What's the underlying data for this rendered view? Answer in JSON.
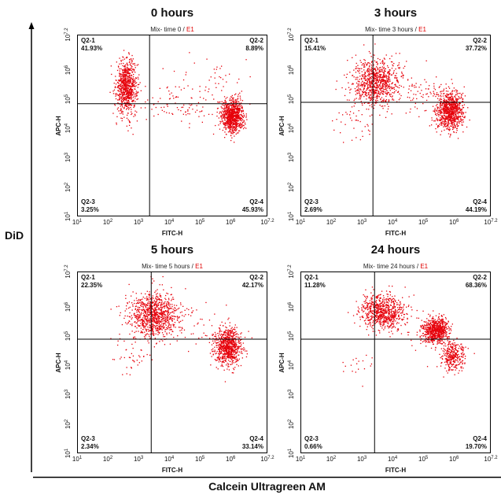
{
  "outer_axes": {
    "y_label": "DiD",
    "x_label": "Calcein Ultragreen AM"
  },
  "chart_data": [
    {
      "type": "scatter",
      "title": "0 hours",
      "subtitle": "Mix- time 0 /",
      "gate_name": "E1",
      "gate_name_color": "#e00000",
      "xlabel": "FITC-H",
      "ylabel": "APC-H",
      "xscale": "log",
      "yscale": "log",
      "xlim": [
        10,
        15848932
      ],
      "ylim": [
        10,
        15848932
      ],
      "grid": false,
      "point_color": "#e6000a",
      "x_ticks": [
        {
          "value": 10,
          "base": "10",
          "exp": "1"
        },
        {
          "value": 100,
          "base": "10",
          "exp": "2"
        },
        {
          "value": 1000,
          "base": "10",
          "exp": "3"
        },
        {
          "value": 10000,
          "base": "10",
          "exp": "4"
        },
        {
          "value": 100000,
          "base": "10",
          "exp": "5"
        },
        {
          "value": 1000000,
          "base": "10",
          "exp": "6"
        },
        {
          "value": 15848932,
          "base": "10",
          "exp": "7.2"
        }
      ],
      "y_ticks": [
        {
          "value": 10,
          "base": "10",
          "exp": "1"
        },
        {
          "value": 100,
          "base": "10",
          "exp": "2"
        },
        {
          "value": 1000,
          "base": "10",
          "exp": "3"
        },
        {
          "value": 10000,
          "base": "10",
          "exp": "4"
        },
        {
          "value": 100000,
          "base": "10",
          "exp": "5"
        },
        {
          "value": 1000000,
          "base": "10",
          "exp": "6"
        },
        {
          "value": 15848932,
          "base": "10",
          "exp": "7.2"
        }
      ],
      "gate": {
        "x": 2300,
        "y": 70000
      },
      "quadrants": {
        "upper_left": {
          "name": "Q2-1",
          "percent": "41.93%"
        },
        "upper_right": {
          "name": "Q2-2",
          "percent": "8.89%"
        },
        "lower_left": {
          "name": "Q2-3",
          "percent": "3.25%"
        },
        "lower_right": {
          "name": "Q2-4",
          "percent": "45.93%"
        }
      },
      "populations": [
        {
          "x": 400,
          "y": 280000,
          "sd_log10_x": 0.17,
          "sd_log10_y": 0.45,
          "share_percent": 44
        },
        {
          "x": 1120000,
          "y": 28000,
          "sd_log10_x": 0.18,
          "sd_log10_y": 0.28,
          "share_percent": 48
        },
        {
          "x": 20000,
          "y": 79000,
          "sd_log10_x": 0.8,
          "sd_log10_y": 0.4,
          "share_percent": 6
        },
        {
          "x": 200000,
          "y": 400000,
          "sd_log10_x": 0.6,
          "sd_log10_y": 0.5,
          "share_percent": 2
        }
      ]
    },
    {
      "type": "scatter",
      "title": "3 hours",
      "subtitle": "Mix- time 3 hours /",
      "gate_name": "E1",
      "gate_name_color": "#e00000",
      "xlabel": "FITC-H",
      "ylabel": "APC-H",
      "xscale": "log",
      "yscale": "log",
      "xlim": [
        10,
        15848932
      ],
      "ylim": [
        10,
        15848932
      ],
      "grid": false,
      "point_color": "#e6000a",
      "x_ticks": [
        {
          "value": 10,
          "base": "10",
          "exp": "1"
        },
        {
          "value": 100,
          "base": "10",
          "exp": "2"
        },
        {
          "value": 1000,
          "base": "10",
          "exp": "3"
        },
        {
          "value": 10000,
          "base": "10",
          "exp": "4"
        },
        {
          "value": 100000,
          "base": "10",
          "exp": "5"
        },
        {
          "value": 1000000,
          "base": "10",
          "exp": "6"
        },
        {
          "value": 15848932,
          "base": "10",
          "exp": "7.2"
        }
      ],
      "y_ticks": [
        {
          "value": 10,
          "base": "10",
          "exp": "1"
        },
        {
          "value": 100,
          "base": "10",
          "exp": "2"
        },
        {
          "value": 1000,
          "base": "10",
          "exp": "3"
        },
        {
          "value": 10000,
          "base": "10",
          "exp": "4"
        },
        {
          "value": 100000,
          "base": "10",
          "exp": "5"
        },
        {
          "value": 1000000,
          "base": "10",
          "exp": "6"
        },
        {
          "value": 15848932,
          "base": "10",
          "exp": "7.2"
        }
      ],
      "gate": {
        "x": 2300,
        "y": 78000
      },
      "quadrants": {
        "upper_left": {
          "name": "Q2-1",
          "percent": "15.41%"
        },
        "upper_right": {
          "name": "Q2-2",
          "percent": "37.72%"
        },
        "lower_left": {
          "name": "Q2-3",
          "percent": "2.69%"
        },
        "lower_right": {
          "name": "Q2-4",
          "percent": "44.19%"
        }
      },
      "populations": [
        {
          "x": 2800,
          "y": 400000,
          "sd_log10_x": 0.38,
          "sd_log10_y": 0.4,
          "share_percent": 46
        },
        {
          "x": 710000,
          "y": 40000,
          "sd_log10_x": 0.22,
          "sd_log10_y": 0.32,
          "share_percent": 47
        },
        {
          "x": 630,
          "y": 16000,
          "sd_log10_x": 0.3,
          "sd_log10_y": 0.3,
          "share_percent": 2
        },
        {
          "x": 63000,
          "y": 160000,
          "sd_log10_x": 0.6,
          "sd_log10_y": 0.4,
          "share_percent": 5
        }
      ]
    },
    {
      "type": "scatter",
      "title": "5 hours",
      "subtitle": "Mix- time 5 hours /",
      "gate_name": "E1",
      "gate_name_color": "#e00000",
      "xlabel": "FITC-H",
      "ylabel": "APC-H",
      "xscale": "log",
      "yscale": "log",
      "xlim": [
        10,
        15848932
      ],
      "ylim": [
        10,
        15848932
      ],
      "grid": false,
      "point_color": "#e6000a",
      "x_ticks": [
        {
          "value": 10,
          "base": "10",
          "exp": "1"
        },
        {
          "value": 100,
          "base": "10",
          "exp": "2"
        },
        {
          "value": 1000,
          "base": "10",
          "exp": "3"
        },
        {
          "value": 10000,
          "base": "10",
          "exp": "4"
        },
        {
          "value": 100000,
          "base": "10",
          "exp": "5"
        },
        {
          "value": 1000000,
          "base": "10",
          "exp": "6"
        },
        {
          "value": 15848932,
          "base": "10",
          "exp": "7.2"
        }
      ],
      "y_ticks": [
        {
          "value": 10,
          "base": "10",
          "exp": "1"
        },
        {
          "value": 100,
          "base": "10",
          "exp": "2"
        },
        {
          "value": 1000,
          "base": "10",
          "exp": "3"
        },
        {
          "value": 10000,
          "base": "10",
          "exp": "4"
        },
        {
          "value": 100000,
          "base": "10",
          "exp": "5"
        },
        {
          "value": 1000000,
          "base": "10",
          "exp": "6"
        },
        {
          "value": 15848932,
          "base": "10",
          "exp": "7.2"
        }
      ],
      "gate": {
        "x": 2600,
        "y": 78000
      },
      "quadrants": {
        "upper_left": {
          "name": "Q2-1",
          "percent": "22.35%"
        },
        "upper_right": {
          "name": "Q2-2",
          "percent": "42.17%"
        },
        "lower_left": {
          "name": "Q2-3",
          "percent": "2.34%"
        },
        "lower_right": {
          "name": "Q2-4",
          "percent": "33.14%"
        }
      },
      "populations": [
        {
          "x": 3200,
          "y": 500000,
          "sd_log10_x": 0.42,
          "sd_log10_y": 0.4,
          "share_percent": 52
        },
        {
          "x": 790000,
          "y": 45000,
          "sd_log10_x": 0.22,
          "sd_log10_y": 0.32,
          "share_percent": 44
        },
        {
          "x": 630,
          "y": 20000,
          "sd_log10_x": 0.3,
          "sd_log10_y": 0.3,
          "share_percent": 2
        },
        {
          "x": 63000,
          "y": 200000,
          "sd_log10_x": 0.5,
          "sd_log10_y": 0.4,
          "share_percent": 2
        }
      ]
    },
    {
      "type": "scatter",
      "title": "24 hours",
      "subtitle": "Mix- time 24 hours /",
      "gate_name": "E1",
      "gate_name_color": "#e00000",
      "xlabel": "FITC-H",
      "ylabel": "APC-H",
      "xscale": "log",
      "yscale": "log",
      "xlim": [
        10,
        15848932
      ],
      "ylim": [
        10,
        15848932
      ],
      "grid": false,
      "point_color": "#e6000a",
      "x_ticks": [
        {
          "value": 10,
          "base": "10",
          "exp": "1"
        },
        {
          "value": 100,
          "base": "10",
          "exp": "2"
        },
        {
          "value": 1000,
          "base": "10",
          "exp": "3"
        },
        {
          "value": 10000,
          "base": "10",
          "exp": "4"
        },
        {
          "value": 100000,
          "base": "10",
          "exp": "5"
        },
        {
          "value": 1000000,
          "base": "10",
          "exp": "6"
        },
        {
          "value": 15848932,
          "base": "10",
          "exp": "7.2"
        }
      ],
      "y_ticks": [
        {
          "value": 10,
          "base": "10",
          "exp": "1"
        },
        {
          "value": 100,
          "base": "10",
          "exp": "2"
        },
        {
          "value": 1000,
          "base": "10",
          "exp": "3"
        },
        {
          "value": 10000,
          "base": "10",
          "exp": "4"
        },
        {
          "value": 100000,
          "base": "10",
          "exp": "5"
        },
        {
          "value": 1000000,
          "base": "10",
          "exp": "6"
        },
        {
          "value": 15848932,
          "base": "10",
          "exp": "7.2"
        }
      ],
      "gate": {
        "x": 2600,
        "y": 78000
      },
      "quadrants": {
        "upper_left": {
          "name": "Q2-1",
          "percent": "11.28%"
        },
        "upper_right": {
          "name": "Q2-2",
          "percent": "68.36%"
        },
        "lower_left": {
          "name": "Q2-3",
          "percent": "0.66%"
        },
        "lower_right": {
          "name": "Q2-4",
          "percent": "19.70%"
        }
      },
      "populations": [
        {
          "x": 4500,
          "y": 710000,
          "sd_log10_x": 0.35,
          "sd_log10_y": 0.3,
          "share_percent": 42
        },
        {
          "x": 250000,
          "y": 160000,
          "sd_log10_x": 0.2,
          "sd_log10_y": 0.22,
          "share_percent": 38
        },
        {
          "x": 890000,
          "y": 22000,
          "sd_log10_x": 0.2,
          "sd_log10_y": 0.25,
          "share_percent": 18
        },
        {
          "x": 630,
          "y": 16000,
          "sd_log10_x": 0.3,
          "sd_log10_y": 0.3,
          "share_percent": 1
        },
        {
          "x": 63000,
          "y": 200000,
          "sd_log10_x": 0.5,
          "sd_log10_y": 0.4,
          "share_percent": 1
        }
      ]
    }
  ]
}
